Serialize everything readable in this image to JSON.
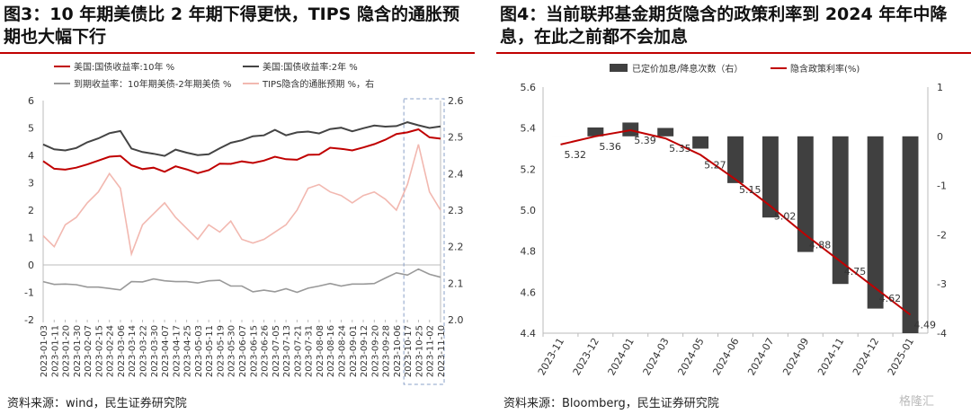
{
  "left": {
    "title": "图3：10 年期美债比 2 年期下得更快，TIPS 隐含的通胀预期也大幅下行",
    "source": "资料来源：wind，民生证券研究院",
    "legend": [
      {
        "label": "美国:国债收益率:10年 %",
        "color": "#c00000"
      },
      {
        "label": "美国:国债收益率:2年 %",
        "color": "#444444"
      },
      {
        "label": "到期收益率：10年期美债-2年期美债 %",
        "color": "#999999"
      },
      {
        "label": "TIPS隐含的通胀预期 %，右",
        "color": "#f2b8b0"
      }
    ]
  },
  "right": {
    "title": "图4：当前联邦基金期货隐含的政策利率到 2024 年年中降息，在此之前都不会加息",
    "source": "资料来源：Bloomberg，民生证券研究院",
    "legend": [
      {
        "label": "已定价加息/降息次数（右）",
        "color": "#404040"
      },
      {
        "label": "隐含政策利率(%)",
        "color": "#c00000"
      }
    ]
  },
  "watermark": "格隆汇",
  "chart_data": [
    {
      "type": "line",
      "x_ticks": [
        "2023-01-03",
        "2023-01-11",
        "2023-01-20",
        "2023-01-30",
        "2023-02-07",
        "2023-02-15",
        "2023-02-24",
        "2023-03-06",
        "2023-03-14",
        "2023-03-22",
        "2023-03-30",
        "2023-04-07",
        "2023-04-17",
        "2023-04-25",
        "2023-05-03",
        "2023-05-11",
        "2023-05-19",
        "2023-05-30",
        "2023-06-07",
        "2023-06-15",
        "2023-06-26",
        "2023-07-05",
        "2023-07-13",
        "2023-07-21",
        "2023-07-31",
        "2023-08-08",
        "2023-08-16",
        "2023-08-24",
        "2023-09-01",
        "2023-09-12",
        "2023-09-20",
        "2023-09-28",
        "2023-10-06",
        "2023-10-17",
        "2023-10-25",
        "2023-11-02",
        "2023-11-10"
      ],
      "y_left": {
        "ticks": [
          -2,
          -1,
          0,
          1,
          2,
          3,
          4,
          5,
          6
        ],
        "lim": [
          -2,
          6
        ]
      },
      "y_right": {
        "ticks": [
          2.0,
          2.1,
          2.2,
          2.3,
          2.4,
          2.5,
          2.6
        ],
        "lim": [
          2.0,
          2.6
        ]
      },
      "highlight_range": [
        "2023-10-17",
        "2023-11-10"
      ],
      "series": [
        {
          "name": "美国:国债收益率:10年 %",
          "axis": "left",
          "values": [
            3.79,
            3.51,
            3.48,
            3.55,
            3.67,
            3.81,
            3.95,
            3.98,
            3.64,
            3.5,
            3.55,
            3.4,
            3.6,
            3.49,
            3.35,
            3.46,
            3.7,
            3.69,
            3.78,
            3.72,
            3.81,
            3.95,
            3.86,
            3.84,
            4.02,
            4.03,
            4.28,
            4.24,
            4.18,
            4.29,
            4.41,
            4.57,
            4.78,
            4.84,
            4.95,
            4.66,
            4.61
          ]
        },
        {
          "name": "美国:国债收益率:2年 %",
          "axis": "left",
          "values": [
            4.4,
            4.22,
            4.18,
            4.27,
            4.48,
            4.62,
            4.81,
            4.89,
            4.25,
            4.12,
            4.06,
            3.98,
            4.21,
            4.1,
            4.01,
            4.04,
            4.26,
            4.46,
            4.55,
            4.7,
            4.73,
            4.93,
            4.73,
            4.84,
            4.87,
            4.8,
            4.96,
            5.01,
            4.88,
            4.99,
            5.09,
            5.05,
            5.07,
            5.21,
            5.1,
            5.0,
            5.06
          ]
        },
        {
          "name": "到期收益率：10年期美债-2年期美债 %",
          "axis": "left",
          "values": [
            -0.61,
            -0.71,
            -0.7,
            -0.72,
            -0.81,
            -0.81,
            -0.86,
            -0.91,
            -0.61,
            -0.62,
            -0.51,
            -0.58,
            -0.61,
            -0.61,
            -0.66,
            -0.58,
            -0.56,
            -0.77,
            -0.77,
            -0.98,
            -0.92,
            -0.98,
            -0.87,
            -1.0,
            -0.85,
            -0.77,
            -0.68,
            -0.77,
            -0.7,
            -0.7,
            -0.68,
            -0.48,
            -0.29,
            -0.37,
            -0.15,
            -0.34,
            -0.45
          ]
        },
        {
          "name": "TIPS隐含的通胀预期 %，右",
          "axis": "right",
          "values": [
            2.23,
            2.2,
            2.26,
            2.28,
            2.32,
            2.35,
            2.4,
            2.36,
            2.18,
            2.26,
            2.29,
            2.32,
            2.28,
            2.25,
            2.22,
            2.26,
            2.24,
            2.27,
            2.22,
            2.21,
            2.22,
            2.24,
            2.26,
            2.3,
            2.36,
            2.37,
            2.35,
            2.34,
            2.32,
            2.34,
            2.35,
            2.33,
            2.3,
            2.37,
            2.48,
            2.35,
            2.3
          ]
        }
      ]
    },
    {
      "type": "bar",
      "categories": [
        "2023-11",
        "2023-12",
        "2024-01",
        "2024-03",
        "2024-05",
        "2024-06",
        "2024-07",
        "2024-09",
        "2024-11",
        "2024-12",
        "2025-01"
      ],
      "y_left": {
        "ticks": [
          4.4,
          4.6,
          4.8,
          5.0,
          5.2,
          5.4,
          5.6
        ],
        "lim": [
          4.4,
          5.6
        ]
      },
      "y_right": {
        "ticks": [
          -4,
          -3,
          -2,
          -1,
          0,
          1
        ],
        "lim": [
          -4,
          1
        ]
      },
      "series": [
        {
          "name": "已定价加息/降息次数（右）",
          "type": "bar",
          "axis": "right",
          "values": [
            0.0,
            0.18,
            0.28,
            0.17,
            -0.25,
            -0.95,
            -1.65,
            -2.35,
            -3.0,
            -3.5,
            -4.0
          ]
        },
        {
          "name": "隐含政策利率(%)",
          "type": "line",
          "axis": "left",
          "values": [
            5.32,
            5.36,
            5.39,
            5.35,
            5.27,
            5.15,
            5.02,
            4.88,
            4.75,
            4.62,
            4.49
          ],
          "labels": [
            "5.32",
            "5.36",
            "5.39",
            "5.35",
            "5.27",
            "5.15",
            "5.02",
            "4.88",
            "4.75",
            "4.62",
            "4.49"
          ]
        }
      ]
    }
  ]
}
